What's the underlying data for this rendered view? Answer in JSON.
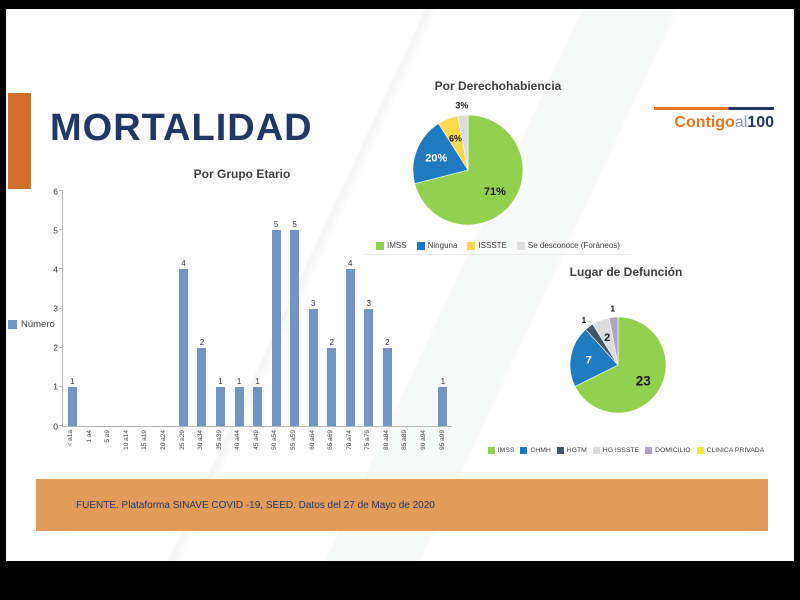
{
  "slide": {
    "title": "MORTALIDAD",
    "footer": "FUENTE. Plataforma SINAVE COVID -19, SEED. Datos del 27 de Mayo de 2020",
    "logo": {
      "part1": "Contigo",
      "part2": "al",
      "part3": "100"
    }
  },
  "colors": {
    "navy": "#1F3864",
    "accent_orange": "#D0712B",
    "footer_orange": "#E29B59",
    "logo_orange": "#E87722",
    "bar_blue": "#7295C4",
    "pie_green": "#92D050",
    "pie_blue": "#1F7BC0",
    "pie_yellow": "#FFD94D",
    "pie_lightgray": "#DCDCDC",
    "pie_darkslate": "#44546A",
    "pie_purple": "#B3A2C7",
    "pie_bright_yellow": "#F5E642"
  },
  "chart_data": [
    {
      "type": "bar",
      "title": "Por Grupo Etario",
      "legend": [
        {
          "label": "Número",
          "color": "#7295C4"
        }
      ],
      "categories": [
        "< a1a",
        "1 a4",
        "5 a9",
        "10 a14",
        "15 a19",
        "20 a24",
        "25 a29",
        "30 a34",
        "35 a39",
        "40 a44",
        "45 a49",
        "50 a54",
        "55 a59",
        "60 a64",
        "65 a69",
        "70 a74",
        "75 a79",
        "80 a84",
        "85 a89",
        "90 a94",
        "95 a99"
      ],
      "values": [
        1,
        0,
        0,
        0,
        0,
        0,
        4,
        2,
        1,
        1,
        1,
        5,
        5,
        3,
        2,
        4,
        3,
        2,
        0,
        0,
        1
      ],
      "ylim": [
        0,
        6
      ],
      "yticks": [
        0,
        1,
        2,
        3,
        4,
        5,
        6
      ],
      "bar_color": "#7295C4",
      "grid": false
    },
    {
      "type": "pie",
      "title": "Por Derechohabiencia",
      "legend_position": "bottom",
      "slices": [
        {
          "label": "IMSS",
          "value": 71,
          "display": "71%",
          "color": "#92D050",
          "text_color": "#1a1a1a"
        },
        {
          "label": "Ninguna",
          "value": 20,
          "display": "20%",
          "color": "#1F7BC0",
          "text_color": "#ffffff"
        },
        {
          "label": "ISSSTE",
          "value": 6,
          "display": "6%",
          "color": "#FFD94D",
          "text_color": "#1a1a1a"
        },
        {
          "label": "Se desconoce (Foráneos)",
          "value": 3,
          "display": "3%",
          "color": "#DCDCDC",
          "text_color": "#1a1a1a"
        }
      ]
    },
    {
      "type": "pie",
      "title": "Lugar de Defunción",
      "legend_position": "bottom",
      "slices": [
        {
          "label": "IMSS",
          "value": 23,
          "display": "23",
          "color": "#92D050",
          "text_color": "#1a1a1a"
        },
        {
          "label": "CHMH",
          "value": 7,
          "display": "7",
          "color": "#1F7BC0",
          "text_color": "#ffffff"
        },
        {
          "label": "HGTM",
          "value": 1,
          "display": "1",
          "color": "#44546A",
          "text_color": "#1a1a1a"
        },
        {
          "label": "HG ISSSTE",
          "value": 2,
          "display": "2",
          "color": "#DCDCDC",
          "text_color": "#1a1a1a"
        },
        {
          "label": "DOMICILIO",
          "value": 1,
          "display": "1",
          "color": "#B3A2C7",
          "text_color": "#1a1a1a"
        },
        {
          "label": "CLINICA PRIVADA",
          "value": 0,
          "display": "",
          "color": "#F5E642",
          "text_color": "#1a1a1a"
        }
      ]
    }
  ]
}
